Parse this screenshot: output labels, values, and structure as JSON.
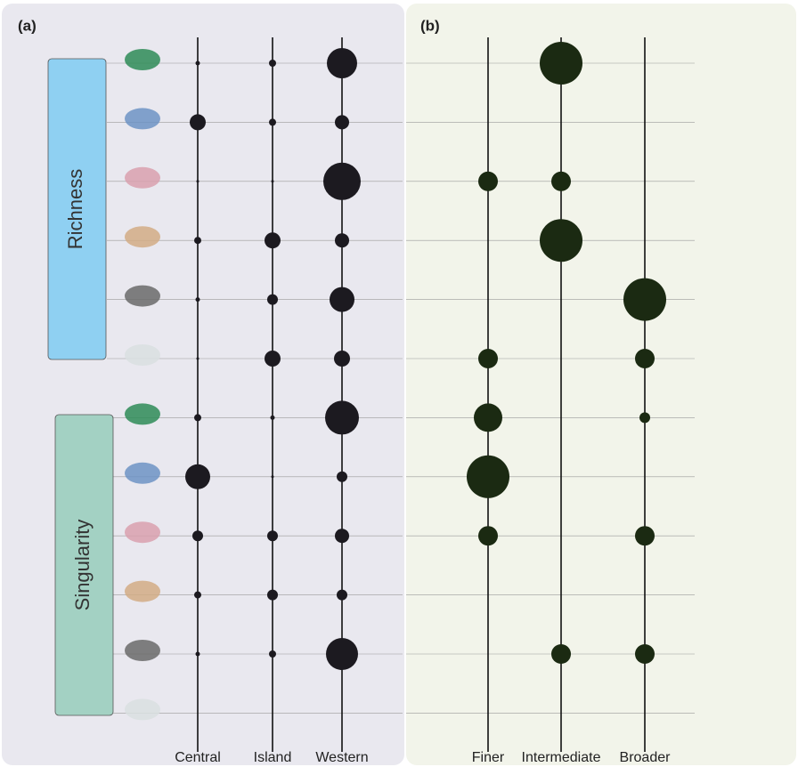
{
  "chart_data": [
    {
      "type": "bubble",
      "panel_label": "(a)",
      "color": "#1c1a20",
      "categories": [
        "Central",
        "Island",
        "Western"
      ],
      "rows": [
        null,
        null,
        null,
        null,
        null,
        null,
        null,
        null,
        null,
        null,
        null,
        null
      ],
      "groups": [
        {
          "label": "Richness",
          "color": "#8fd0f2"
        },
        {
          "label": "Singularity",
          "color": "#a3d1c3"
        }
      ],
      "series": [
        {
          "values": [
            5,
            18,
            3,
            8,
            5,
            3,
            8,
            28,
            12,
            8,
            5,
            null
          ]
        },
        {
          "values": [
            8,
            8,
            3,
            18,
            12,
            18,
            5,
            3,
            12,
            12,
            8,
            null
          ]
        },
        {
          "values": [
            34,
            16,
            42,
            16,
            28,
            18,
            38,
            12,
            16,
            12,
            36,
            null
          ]
        }
      ]
    },
    {
      "type": "bubble",
      "panel_label": "(b)",
      "color": "#1b2a12",
      "categories": [
        "Finer",
        "Intermediate",
        "Broader"
      ],
      "rows": [
        null,
        null,
        null,
        null,
        null,
        null,
        null,
        null,
        null,
        null,
        null,
        null
      ],
      "series": [
        {
          "values": [
            null,
            null,
            22,
            null,
            null,
            22,
            32,
            48,
            22,
            null,
            null,
            null
          ]
        },
        {
          "values": [
            48,
            null,
            22,
            48,
            null,
            null,
            null,
            null,
            null,
            null,
            22,
            null
          ]
        },
        {
          "values": [
            null,
            null,
            null,
            null,
            48,
            22,
            12,
            null,
            22,
            null,
            22,
            null
          ]
        }
      ]
    }
  ]
}
